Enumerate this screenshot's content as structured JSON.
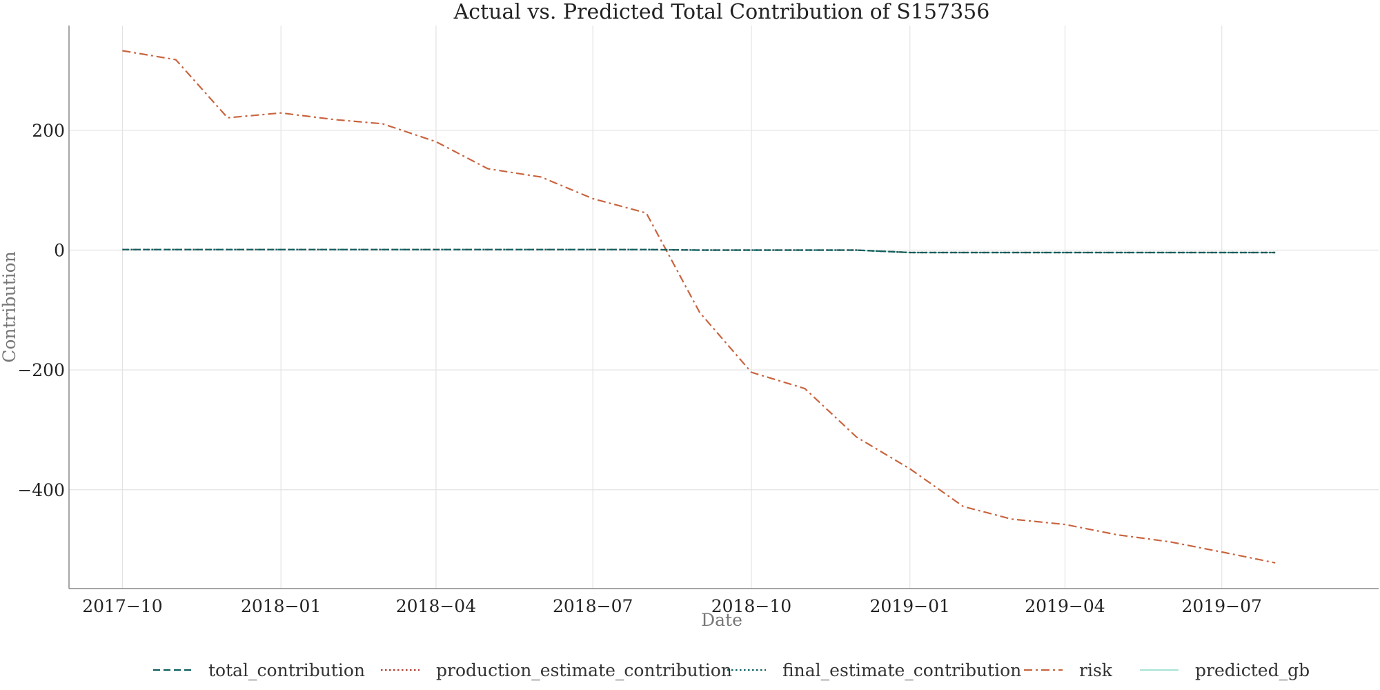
{
  "chart_data": {
    "type": "line",
    "title": "Actual vs. Predicted Total Contribution of S157356",
    "xlabel": "Date",
    "ylabel": "Contribution",
    "x_tick_labels": [
      "2017−10",
      "2018−01",
      "2018−04",
      "2018−07",
      "2018−10",
      "2019−01",
      "2019−04",
      "2019−07"
    ],
    "x_tick_dates": [
      "2017-10-01",
      "2018-01-01",
      "2018-04-01",
      "2018-07-01",
      "2018-10-01",
      "2019-01-01",
      "2019-04-01",
      "2019-07-01"
    ],
    "y_tick_labels": [
      "200",
      "0",
      "−200",
      "−400"
    ],
    "y_tick_values": [
      200,
      0,
      -200,
      -400
    ],
    "xlim": [
      "2017-08-31",
      "2019-09-30"
    ],
    "ylim": [
      -565,
      375
    ],
    "grid": true,
    "legend_position": "bottom",
    "x": [
      "2017-10-01",
      "2017-11-01",
      "2017-12-01",
      "2018-01-01",
      "2018-02-01",
      "2018-03-01",
      "2018-04-01",
      "2018-05-01",
      "2018-06-01",
      "2018-07-01",
      "2018-08-01",
      "2018-09-01",
      "2018-10-01",
      "2018-11-01",
      "2018-12-01",
      "2019-01-01",
      "2019-02-01",
      "2019-03-01",
      "2019-04-01",
      "2019-05-01",
      "2019-06-01",
      "2019-07-01",
      "2019-08-01"
    ],
    "series": [
      {
        "name": "total_contribution",
        "color": "#0b5e5e",
        "dash": "dashed",
        "values": [
          1,
          1,
          1,
          1,
          1,
          1,
          1,
          1,
          1,
          1,
          1,
          0,
          0,
          0,
          0,
          -4,
          -4,
          -4,
          -4,
          -4,
          -4,
          -4,
          -4
        ]
      },
      {
        "name": "production_estimate_contribution",
        "color": "#b03a2e",
        "dash": "dotted",
        "values": [
          1,
          1,
          1,
          1,
          1,
          1,
          1,
          1,
          1,
          1,
          1,
          0,
          0,
          0,
          0,
          -4,
          -4,
          -4,
          -4,
          -4,
          -4,
          -4,
          -4
        ]
      },
      {
        "name": "final_estimate_contribution",
        "color": "#0b5e5e",
        "dash": "dotted",
        "values": [
          1,
          1,
          1,
          1,
          1,
          1,
          1,
          1,
          1,
          1,
          1,
          0,
          0,
          0,
          0,
          -4,
          -4,
          -4,
          -4,
          -4,
          -4,
          -4,
          -4
        ]
      },
      {
        "name": "risk",
        "color": "#c8643f",
        "dash": "dashdot",
        "values": [
          333,
          318,
          221,
          229,
          218,
          211,
          181,
          136,
          122,
          86,
          62,
          -104,
          -204,
          -231,
          -312,
          -365,
          -428,
          -449,
          -458,
          -475,
          -487,
          -504,
          -522
        ]
      },
      {
        "name": "predicted_gb",
        "color": "#a8e3d6",
        "dash": "solid",
        "values": [
          null,
          null,
          null,
          null,
          null,
          null,
          null,
          null,
          null,
          null,
          null,
          null,
          null,
          null,
          0,
          -4,
          -4,
          -4,
          -4,
          -4,
          -4,
          -4,
          -4
        ]
      }
    ]
  }
}
